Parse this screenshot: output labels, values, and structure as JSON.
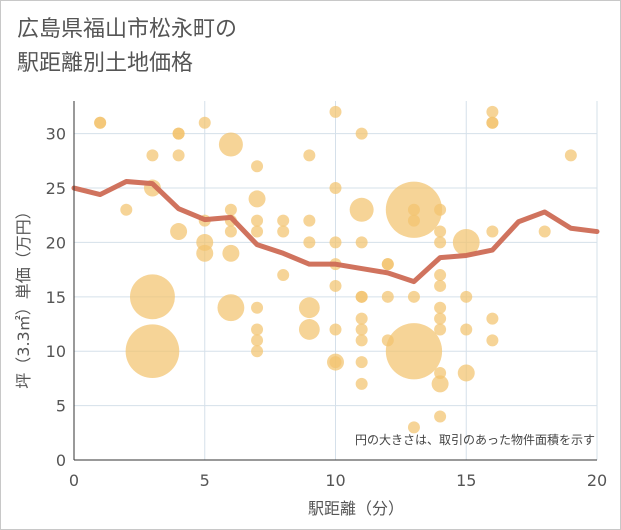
{
  "chart_data": {
    "type": "scatter",
    "title_lines": [
      "広島県福山市松永町の",
      "駅距離別土地価格"
    ],
    "xlabel": "駅距離（分）",
    "ylabel": "坪（3.3㎡）単価（万円）",
    "annotation": "円の大きさは、取引のあった物件面積を示す",
    "xlim": [
      0,
      20
    ],
    "ylim": [
      0,
      33
    ],
    "xticks": [
      0,
      5,
      10,
      15,
      20
    ],
    "yticks": [
      0,
      5,
      10,
      15,
      20,
      25,
      30
    ],
    "grid": true,
    "colors": {
      "bubble": "#f2c46f",
      "line": "#cd6b55",
      "grid": "#d5e0ea",
      "tick": "#555555"
    },
    "bubbles": [
      {
        "x": 1,
        "y": 31,
        "size": 1
      },
      {
        "x": 1,
        "y": 31,
        "size": 1
      },
      {
        "x": 2,
        "y": 23,
        "size": 1
      },
      {
        "x": 3,
        "y": 28,
        "size": 1
      },
      {
        "x": 3,
        "y": 25,
        "size": 2
      },
      {
        "x": 3,
        "y": 15,
        "size": 14
      },
      {
        "x": 3,
        "y": 10,
        "size": 20
      },
      {
        "x": 4,
        "y": 30,
        "size": 1
      },
      {
        "x": 4,
        "y": 30,
        "size": 1
      },
      {
        "x": 4,
        "y": 28,
        "size": 1
      },
      {
        "x": 4,
        "y": 21,
        "size": 2
      },
      {
        "x": 5,
        "y": 31,
        "size": 1
      },
      {
        "x": 5,
        "y": 22,
        "size": 1
      },
      {
        "x": 5,
        "y": 20,
        "size": 2
      },
      {
        "x": 5,
        "y": 19,
        "size": 2
      },
      {
        "x": 6,
        "y": 29,
        "size": 4
      },
      {
        "x": 6,
        "y": 23,
        "size": 1
      },
      {
        "x": 6,
        "y": 22,
        "size": 1
      },
      {
        "x": 6,
        "y": 21,
        "size": 1
      },
      {
        "x": 6,
        "y": 19,
        "size": 2
      },
      {
        "x": 6,
        "y": 14,
        "size": 5
      },
      {
        "x": 7,
        "y": 27,
        "size": 1
      },
      {
        "x": 7,
        "y": 24,
        "size": 2
      },
      {
        "x": 7,
        "y": 22,
        "size": 1
      },
      {
        "x": 7,
        "y": 21,
        "size": 1
      },
      {
        "x": 7,
        "y": 14,
        "size": 1
      },
      {
        "x": 7,
        "y": 12,
        "size": 1
      },
      {
        "x": 7,
        "y": 11,
        "size": 1
      },
      {
        "x": 7,
        "y": 10,
        "size": 1
      },
      {
        "x": 8,
        "y": 22,
        "size": 1
      },
      {
        "x": 8,
        "y": 21,
        "size": 1
      },
      {
        "x": 8,
        "y": 17,
        "size": 1
      },
      {
        "x": 9,
        "y": 28,
        "size": 1
      },
      {
        "x": 9,
        "y": 22,
        "size": 1
      },
      {
        "x": 9,
        "y": 20,
        "size": 1
      },
      {
        "x": 9,
        "y": 14,
        "size": 3
      },
      {
        "x": 9,
        "y": 12,
        "size": 3
      },
      {
        "x": 10,
        "y": 32,
        "size": 1
      },
      {
        "x": 10,
        "y": 25,
        "size": 1
      },
      {
        "x": 10,
        "y": 20,
        "size": 1
      },
      {
        "x": 10,
        "y": 18,
        "size": 1
      },
      {
        "x": 10,
        "y": 16,
        "size": 1
      },
      {
        "x": 10,
        "y": 12,
        "size": 1
      },
      {
        "x": 10,
        "y": 9,
        "size": 2
      },
      {
        "x": 10,
        "y": 9,
        "size": 1
      },
      {
        "x": 11,
        "y": 30,
        "size": 1
      },
      {
        "x": 11,
        "y": 23,
        "size": 4
      },
      {
        "x": 11,
        "y": 20,
        "size": 1
      },
      {
        "x": 11,
        "y": 15,
        "size": 1
      },
      {
        "x": 11,
        "y": 15,
        "size": 1
      },
      {
        "x": 11,
        "y": 13,
        "size": 1
      },
      {
        "x": 11,
        "y": 12,
        "size": 1
      },
      {
        "x": 11,
        "y": 11,
        "size": 1
      },
      {
        "x": 11,
        "y": 9,
        "size": 1
      },
      {
        "x": 11,
        "y": 7,
        "size": 1
      },
      {
        "x": 12,
        "y": 18,
        "size": 1
      },
      {
        "x": 12,
        "y": 18,
        "size": 1
      },
      {
        "x": 12,
        "y": 15,
        "size": 1
      },
      {
        "x": 12,
        "y": 11,
        "size": 1
      },
      {
        "x": 13,
        "y": 23,
        "size": 22
      },
      {
        "x": 13,
        "y": 23,
        "size": 1
      },
      {
        "x": 13,
        "y": 22,
        "size": 1
      },
      {
        "x": 13,
        "y": 15,
        "size": 1
      },
      {
        "x": 13,
        "y": 10,
        "size": 22
      },
      {
        "x": 13,
        "y": 3,
        "size": 1
      },
      {
        "x": 14,
        "y": 23,
        "size": 1
      },
      {
        "x": 14,
        "y": 21,
        "size": 1
      },
      {
        "x": 14,
        "y": 20,
        "size": 1
      },
      {
        "x": 14,
        "y": 17,
        "size": 1
      },
      {
        "x": 14,
        "y": 16,
        "size": 1
      },
      {
        "x": 14,
        "y": 14,
        "size": 1
      },
      {
        "x": 14,
        "y": 13,
        "size": 1
      },
      {
        "x": 14,
        "y": 12,
        "size": 1
      },
      {
        "x": 14,
        "y": 8,
        "size": 1
      },
      {
        "x": 14,
        "y": 7,
        "size": 2
      },
      {
        "x": 14,
        "y": 4,
        "size": 1
      },
      {
        "x": 15,
        "y": 20,
        "size": 5
      },
      {
        "x": 15,
        "y": 15,
        "size": 1
      },
      {
        "x": 15,
        "y": 12,
        "size": 1
      },
      {
        "x": 15,
        "y": 8,
        "size": 2
      },
      {
        "x": 16,
        "y": 32,
        "size": 1
      },
      {
        "x": 16,
        "y": 31,
        "size": 1
      },
      {
        "x": 16,
        "y": 31,
        "size": 1
      },
      {
        "x": 16,
        "y": 21,
        "size": 1
      },
      {
        "x": 16,
        "y": 13,
        "size": 1
      },
      {
        "x": 16,
        "y": 11,
        "size": 1
      },
      {
        "x": 18,
        "y": 21,
        "size": 1
      },
      {
        "x": 19,
        "y": 28,
        "size": 1
      }
    ],
    "average_line": {
      "x": [
        0,
        1,
        2,
        3,
        4,
        5,
        6,
        7,
        8,
        9,
        10,
        11,
        12,
        13,
        14,
        15,
        16,
        17,
        18,
        19,
        20
      ],
      "y": [
        25.0,
        24.4,
        25.6,
        25.4,
        23.1,
        22.1,
        22.3,
        19.8,
        19.0,
        18.0,
        18.0,
        17.6,
        17.2,
        16.4,
        18.6,
        18.8,
        19.3,
        21.9,
        22.8,
        21.3,
        21.0
      ]
    }
  }
}
